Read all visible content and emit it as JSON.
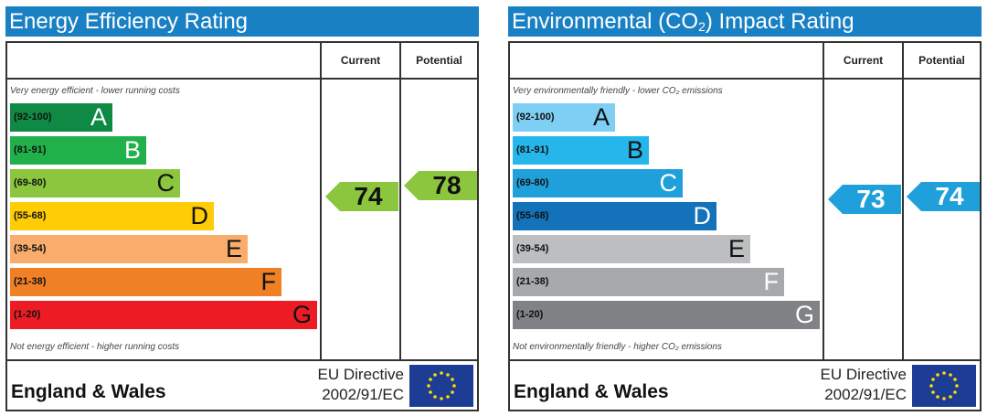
{
  "chart_data": [
    {
      "type": "bar",
      "title": "Energy Efficiency Rating",
      "columns": [
        "Current",
        "Potential"
      ],
      "top_note": "Very energy efficient - lower running costs",
      "bottom_note": "Not energy efficient - higher running costs",
      "bands": [
        {
          "letter": "A",
          "range": "(92-100)",
          "color": "#0e8a45"
        },
        {
          "letter": "B",
          "range": "(81-91)",
          "color": "#21b14b"
        },
        {
          "letter": "C",
          "range": "(69-80)",
          "color": "#8cc63e"
        },
        {
          "letter": "D",
          "range": "(55-68)",
          "color": "#ffcc05"
        },
        {
          "letter": "E",
          "range": "(39-54)",
          "color": "#f9ad6c"
        },
        {
          "letter": "F",
          "range": "(21-38)",
          "color": "#ef8025"
        },
        {
          "letter": "G",
          "range": "(1-20)",
          "color": "#ed1c24"
        }
      ],
      "current": 74,
      "potential": 78,
      "current_color": "#8cc63e",
      "potential_color": "#8cc63e",
      "region": "England & Wales",
      "directive": [
        "EU Directive",
        "2002/91/EC"
      ]
    },
    {
      "type": "bar",
      "title": "Environmental (CO₂) Impact Rating",
      "columns": [
        "Current",
        "Potential"
      ],
      "top_note": "Very environmentally friendly - lower CO₂ emissions",
      "bottom_note": "Not environmentally friendly - higher CO₂ emissions",
      "bands": [
        {
          "letter": "A",
          "range": "(92-100)",
          "color": "#7fcff5"
        },
        {
          "letter": "B",
          "range": "(81-91)",
          "color": "#25b6eb"
        },
        {
          "letter": "C",
          "range": "(69-80)",
          "color": "#20a0da"
        },
        {
          "letter": "D",
          "range": "(55-68)",
          "color": "#1372ba"
        },
        {
          "letter": "E",
          "range": "(39-54)",
          "color": "#bcbec0"
        },
        {
          "letter": "F",
          "range": "(21-38)",
          "color": "#a7a9ac"
        },
        {
          "letter": "G",
          "range": "(1-20)",
          "color": "#808285"
        }
      ],
      "current": 73,
      "potential": 74,
      "current_color": "#20a0da",
      "potential_color": "#20a0da",
      "region": "England & Wales",
      "directive": [
        "EU Directive",
        "2002/91/EC"
      ]
    }
  ]
}
